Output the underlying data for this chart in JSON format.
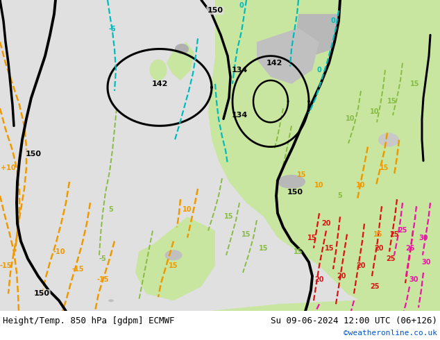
{
  "title_left": "Height/Temp. 850 hPa [gdpm] ECMWF",
  "title_right": "Su 09-06-2024 12:00 UTC (06+126)",
  "credit": "©weatheronline.co.uk",
  "credit_color": "#0055cc",
  "bg_color": "#ffffff",
  "map_bg_land": "#c8e6a0",
  "map_bg_sea": "#e8e8e8",
  "bottom_bar_color": "#f0f0f0",
  "font_size_title": 9.0,
  "font_size_credit": 8.0,
  "figsize": [
    6.34,
    4.9
  ],
  "dpi": 100,
  "black_color": "#000000",
  "cyan_color": "#00bbbb",
  "green_color": "#88bb44",
  "orange_color": "#ee9900",
  "red_color": "#dd1111",
  "pink_color": "#ee11aa",
  "label_fontsize": 7
}
